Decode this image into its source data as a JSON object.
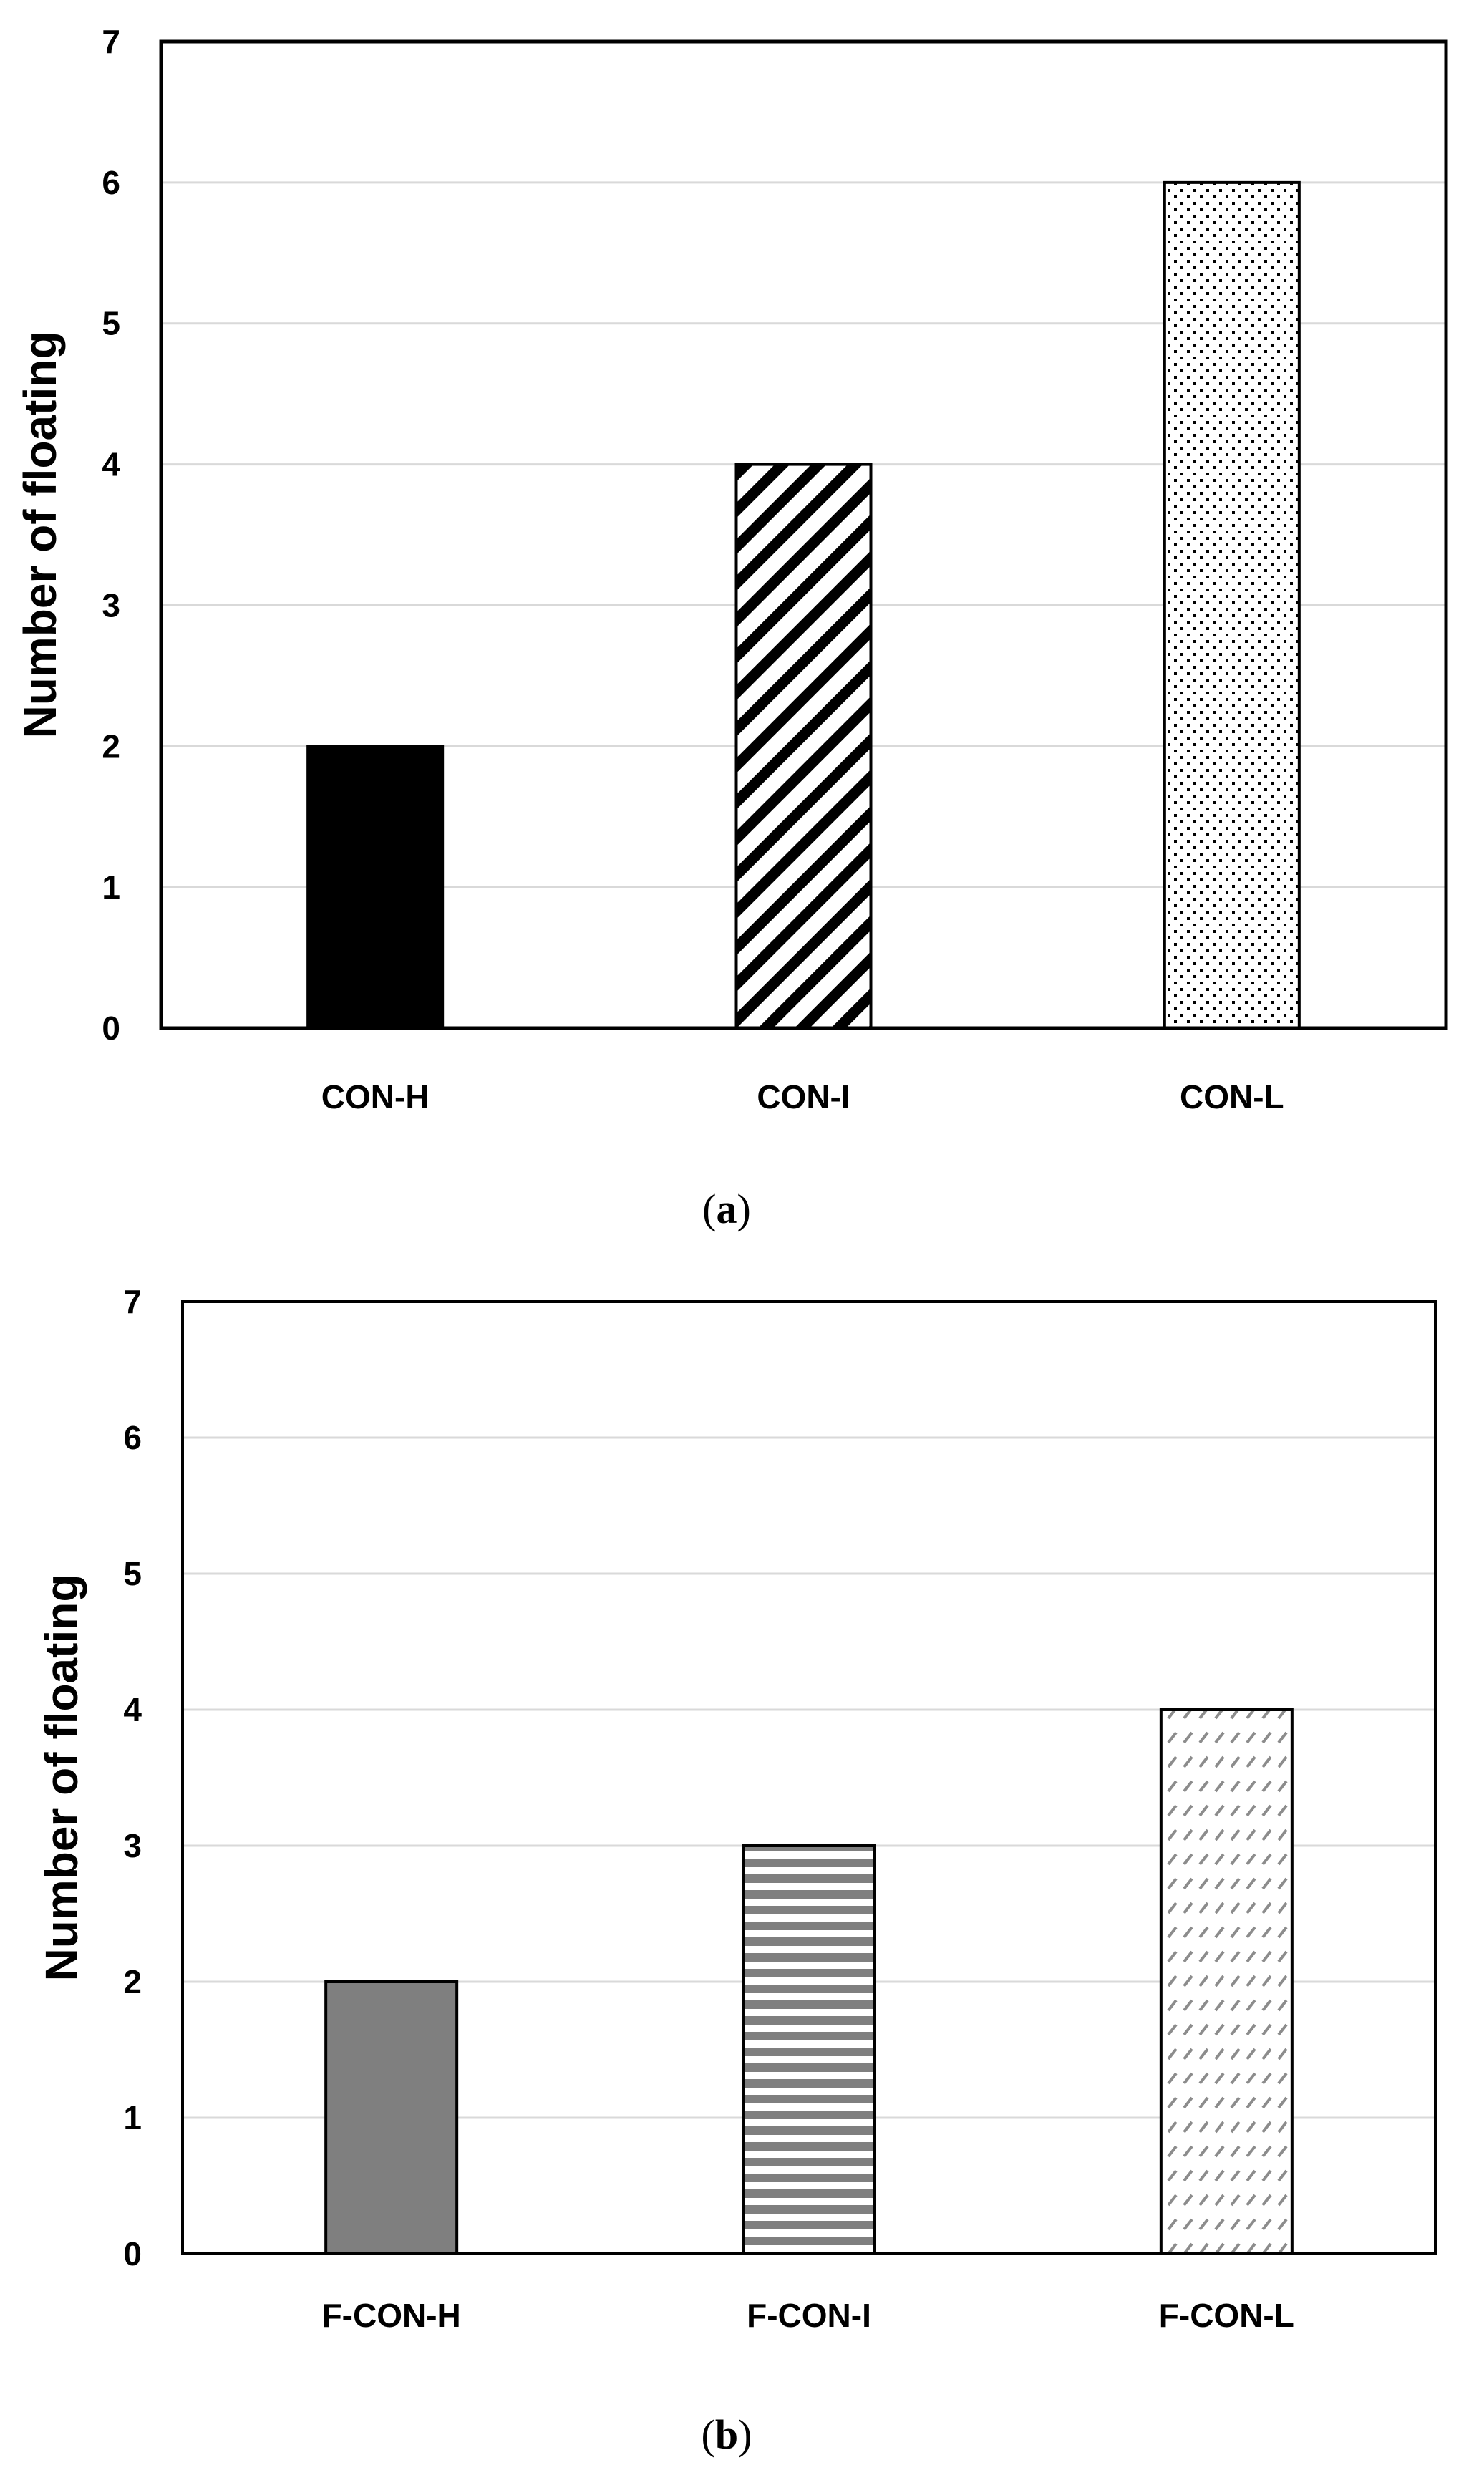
{
  "chart_data": [
    {
      "type": "bar",
      "panel_label": "(a)",
      "panel_letter": "a",
      "title": "",
      "xlabel": "",
      "ylabel": "Number of floating",
      "ylim": [
        0,
        7
      ],
      "yticks": [
        0,
        1,
        2,
        3,
        4,
        5,
        6,
        7
      ],
      "grid": true,
      "categories": [
        "CON-H",
        "CON-I",
        "CON-L"
      ],
      "values": [
        2,
        4,
        6
      ],
      "fills": [
        "solid-black",
        "diagonal-stripes-black",
        "dots-black"
      ]
    },
    {
      "type": "bar",
      "panel_label": "(b)",
      "panel_letter": "b",
      "title": "",
      "xlabel": "",
      "ylabel": "Number of floating",
      "ylim": [
        0,
        7
      ],
      "yticks": [
        0,
        1,
        2,
        3,
        4,
        5,
        6,
        7
      ],
      "grid": true,
      "categories": [
        "F-CON-H",
        "F-CON-I",
        "F-CON-L"
      ],
      "values": [
        2,
        3,
        4
      ],
      "fills": [
        "solid-gray",
        "horizontal-stripes-gray",
        "dashes-gray"
      ]
    }
  ],
  "colors": {
    "black": "#000000",
    "gray": "#7f7f7f",
    "grid": "#d9d9d9"
  }
}
